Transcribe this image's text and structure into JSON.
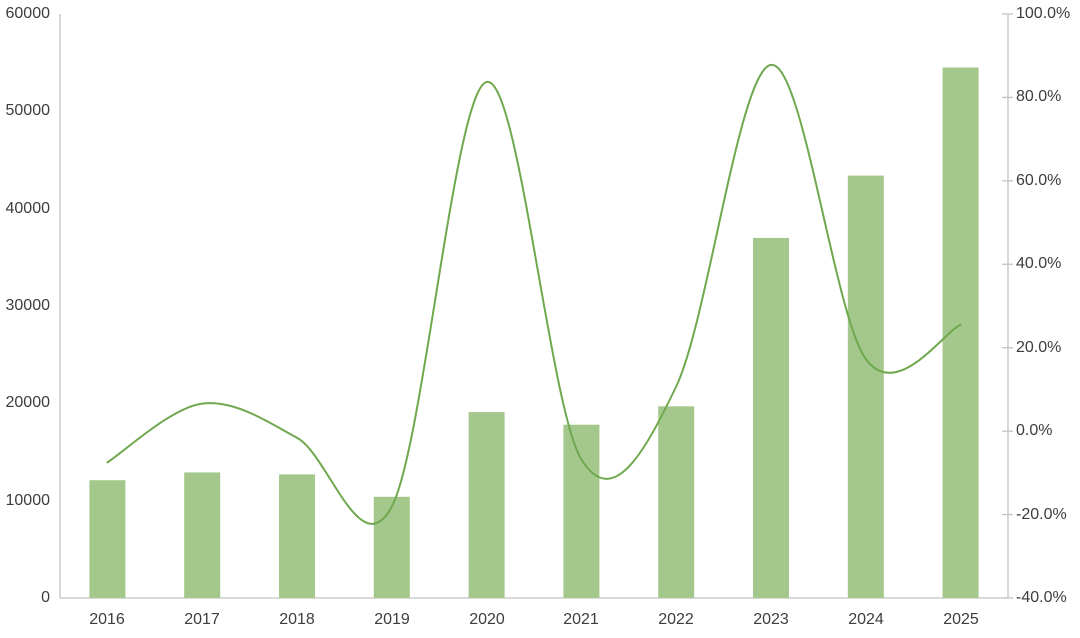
{
  "chart_data": {
    "type": "combo-bar-line",
    "title": "",
    "categories": [
      "2016",
      "2017",
      "2018",
      "2019",
      "2020",
      "2021",
      "2022",
      "2023",
      "2024",
      "2025"
    ],
    "series": [
      {
        "name": "annual-value-bars",
        "type": "bar",
        "axis": "left",
        "values": [
          12100,
          12900,
          12700,
          10400,
          19100,
          17800,
          19700,
          37000,
          43400,
          54500
        ]
      },
      {
        "name": "yoy-growth-line",
        "type": "line",
        "axis": "right",
        "smooth": true,
        "values": [
          -7.5,
          6.6,
          -1.6,
          -18.1,
          83.7,
          -6.8,
          10.7,
          87.8,
          17.3,
          25.5
        ]
      }
    ],
    "left_axis": {
      "min": 0,
      "max": 60000,
      "step": 10000,
      "tick_labels": [
        "0",
        "10000",
        "20000",
        "30000",
        "40000",
        "50000",
        "60000"
      ]
    },
    "right_axis": {
      "min": -40,
      "max": 100,
      "step": 20,
      "tick_labels": [
        "-40.0%",
        "-20.0%",
        "0.0%",
        "20.0%",
        "40.0%",
        "60.0%",
        "80.0%",
        "100.0%"
      ]
    },
    "legend": "none",
    "grid": "none"
  },
  "colors": {
    "bar_fill": "#a4c88c",
    "line_stroke": "#6fa84e",
    "axis_line": "#c3c3c3",
    "tick_text": "#3d3d3d",
    "background": "#ffffff"
  }
}
